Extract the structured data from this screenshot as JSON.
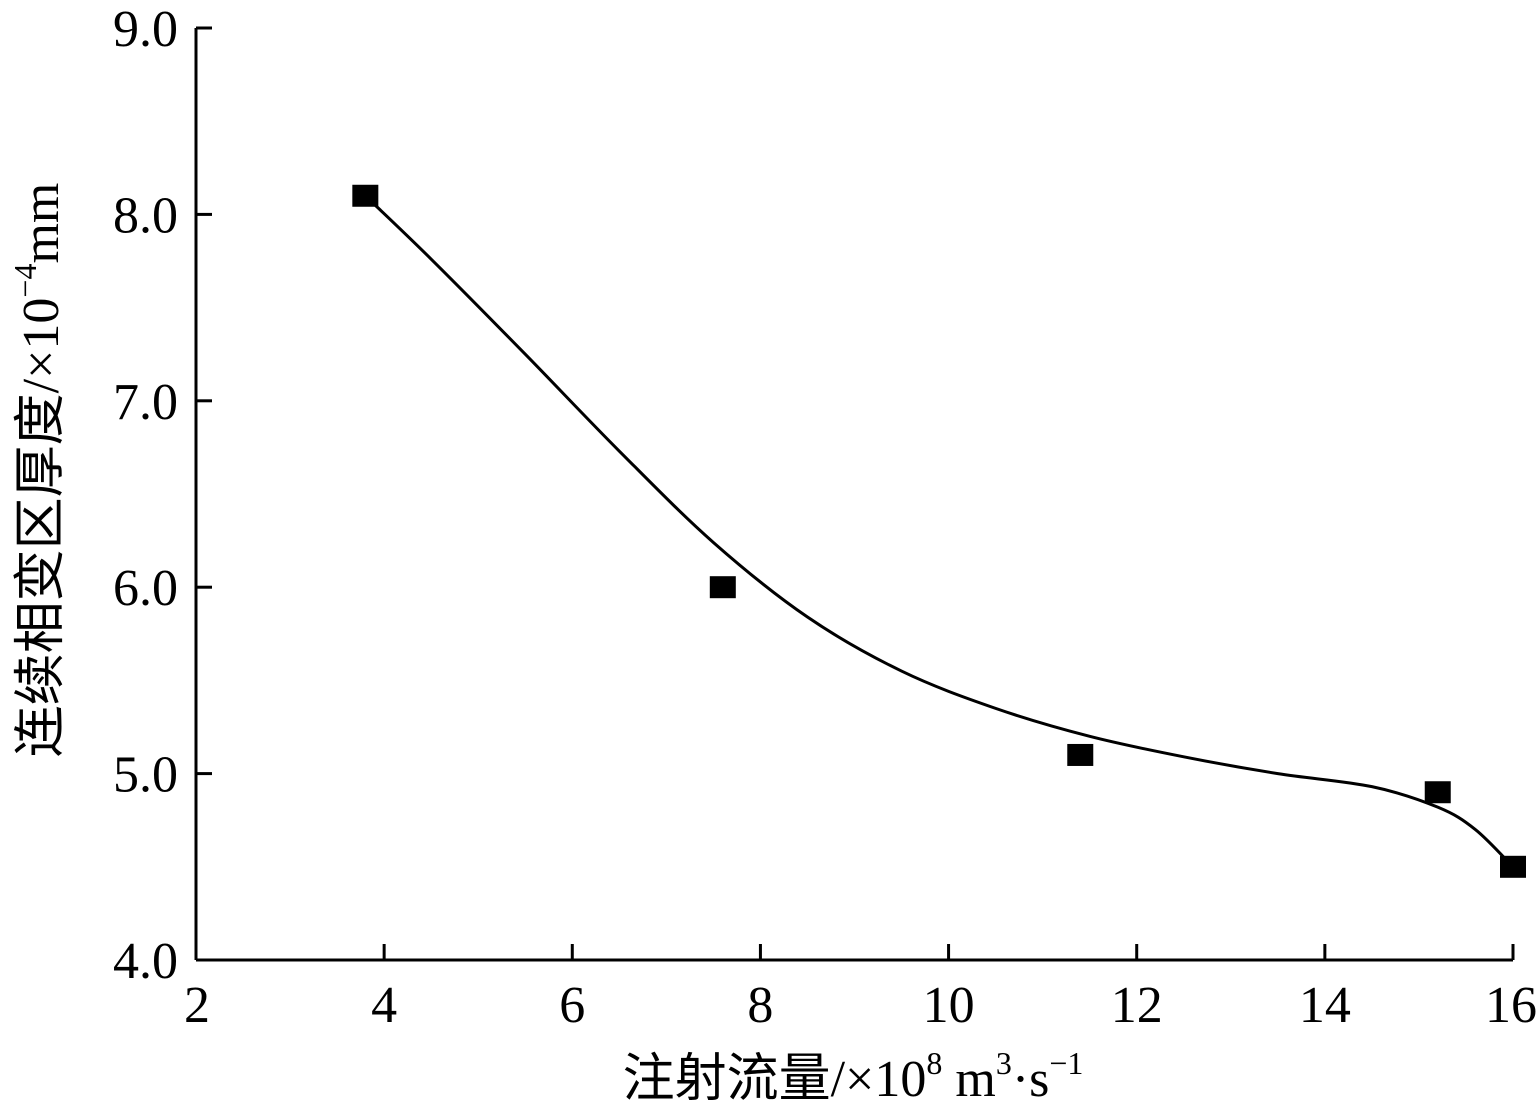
{
  "chart_data": {
    "type": "scatter",
    "title": "",
    "xlabel": "注射流量/×10⁸ m³·s⁻¹",
    "xlabel_parts": {
      "main": "注射流量/×10",
      "exp1": "8",
      "unit1": " m",
      "exp2": "3",
      "unit2": "·s",
      "exp3": "−1"
    },
    "ylabel": "连续相变区厚度/×10⁻⁴mm",
    "ylabel_parts": {
      "main": "连续相变区厚度/×10",
      "exp": "−4",
      "unit": "mm"
    },
    "xlim": [
      2,
      16
    ],
    "ylim": [
      4.0,
      9.0
    ],
    "x_ticks": [
      "2",
      "4",
      "6",
      "8",
      "10",
      "12",
      "14",
      "16"
    ],
    "y_ticks": [
      "4.0",
      "5.0",
      "6.0",
      "7.0",
      "8.0",
      "9.0"
    ],
    "grid": false,
    "legend": "none",
    "series": [
      {
        "marker": "square",
        "color": "#000000",
        "x": [
          3.8,
          7.6,
          11.4,
          15.2,
          16.0
        ],
        "y": [
          8.1,
          6.0,
          5.1,
          4.9,
          4.5
        ]
      }
    ],
    "fit_curve": {
      "color": "#000000",
      "x": [
        3.8,
        4.5,
        5.5,
        6.5,
        7.5,
        8.5,
        9.5,
        10.5,
        11.5,
        12.5,
        13.5,
        14.5,
        15.2,
        15.6,
        16.0
      ],
      "y": [
        8.1,
        7.76,
        7.25,
        6.73,
        6.24,
        5.84,
        5.55,
        5.35,
        5.2,
        5.09,
        5.0,
        4.93,
        4.82,
        4.7,
        4.5
      ]
    }
  }
}
